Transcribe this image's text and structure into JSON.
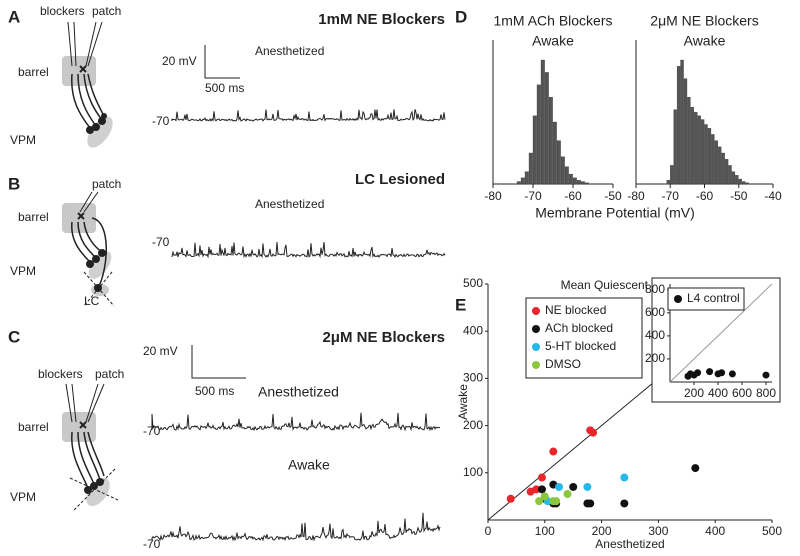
{
  "panels": {
    "A": {
      "label": "A",
      "blockers": "blockers",
      "patch": "patch",
      "barrel": "barrel",
      "vpm": "VPM",
      "title": "1mM NE Blockers",
      "state": "Anesthetized",
      "scale_y": "20 mV",
      "scale_x": "500 ms",
      "baseline": "-70"
    },
    "B": {
      "label": "B",
      "patch": "patch",
      "barrel": "barrel",
      "vpm": "VPM",
      "lc": "LC",
      "title": "LC Lesioned",
      "state": "Anesthetized",
      "baseline": "-70"
    },
    "C": {
      "label": "C",
      "blockers": "blockers",
      "patch": "patch",
      "barrel": "barrel",
      "vpm": "VPM",
      "title": "2μM NE Blockers",
      "state": "Anesthetized",
      "state2": "Awake",
      "scale_y": "20 mV",
      "scale_x": "500 ms",
      "baseline": "-70",
      "baseline2": "-70"
    }
  },
  "chart_data": [
    {
      "type": "histogram",
      "label": "D",
      "title": "1mM ACh Blockers",
      "subtitle": "Awake",
      "xlabel": "Membrane Potential (mV)",
      "bins": [
        -74,
        -73,
        -72,
        -71,
        -70,
        -69,
        -68,
        -67,
        -66,
        -65,
        -64,
        -63,
        -62,
        -61,
        -60,
        -59,
        -58,
        -57,
        -56
      ],
      "counts": [
        2,
        5,
        10,
        25,
        55,
        80,
        100,
        90,
        70,
        50,
        35,
        22,
        14,
        8,
        5,
        3,
        2,
        1
      ],
      "color": "#555555",
      "xlim": [
        -80,
        -50
      ],
      "xticks": [
        -80,
        -70,
        -60,
        -50
      ],
      "ylim": [
        0,
        100
      ]
    },
    {
      "type": "histogram",
      "title": "2μM NE Blockers",
      "subtitle": "Awake",
      "bins": [
        -71,
        -70,
        -69,
        -68,
        -67,
        -66,
        -65,
        -64,
        -63,
        -62,
        -61,
        -60,
        -59,
        -58,
        -57,
        -56,
        -55,
        -54,
        -53,
        -52,
        -51,
        -50,
        -49,
        -48,
        -47
      ],
      "counts": [
        3,
        15,
        60,
        95,
        100,
        85,
        70,
        62,
        58,
        55,
        52,
        48,
        45,
        40,
        35,
        30,
        25,
        20,
        15,
        10,
        7,
        4,
        2,
        1
      ],
      "color": "#555555",
      "xlim": [
        -80,
        -40
      ],
      "xticks": [
        -80,
        -70,
        -60,
        -50,
        -40
      ],
      "ylim": [
        0,
        100
      ]
    },
    {
      "type": "scatter",
      "label": "E",
      "title": "Mean Quiescent Periods (ms)",
      "xlabel": "Anesthetized",
      "ylabel": "Awake",
      "xlim": [
        0,
        500
      ],
      "ylim": [
        0,
        500
      ],
      "xticks": [
        0,
        100,
        200,
        300,
        400,
        500
      ],
      "yticks": [
        100,
        200,
        300,
        400,
        500
      ],
      "legend": "upper left",
      "series": [
        {
          "name": "NE blocked",
          "color": "#e8262b",
          "x": [
            40,
            75,
            85,
            95,
            115,
            180,
            185
          ],
          "y": [
            45,
            60,
            65,
            90,
            145,
            190,
            185
          ]
        },
        {
          "name": "ACh blocked",
          "color": "#111111",
          "x": [
            95,
            100,
            115,
            115,
            120,
            150,
            175,
            180,
            240,
            365
          ],
          "y": [
            65,
            45,
            75,
            35,
            35,
            70,
            35,
            35,
            35,
            110
          ]
        },
        {
          "name": "5-HT blocked",
          "color": "#29b6e8",
          "x": [
            105,
            125,
            175,
            240
          ],
          "y": [
            40,
            70,
            70,
            90
          ]
        },
        {
          "name": "DMSO",
          "color": "#8cc63f",
          "x": [
            90,
            100,
            115,
            120,
            140
          ],
          "y": [
            40,
            50,
            40,
            40,
            55
          ]
        }
      ]
    },
    {
      "type": "scatter",
      "xlim": [
        0,
        850
      ],
      "ylim": [
        0,
        850
      ],
      "xticks": [
        200,
        400,
        600,
        800
      ],
      "yticks": [
        200,
        400,
        600,
        800
      ],
      "legend": "upper left",
      "series": [
        {
          "name": "L4 control",
          "color": "#111111",
          "x": [
            150,
            170,
            200,
            230,
            330,
            400,
            430,
            520,
            800
          ],
          "y": [
            50,
            70,
            60,
            80,
            90,
            70,
            80,
            70,
            60
          ]
        }
      ]
    }
  ]
}
